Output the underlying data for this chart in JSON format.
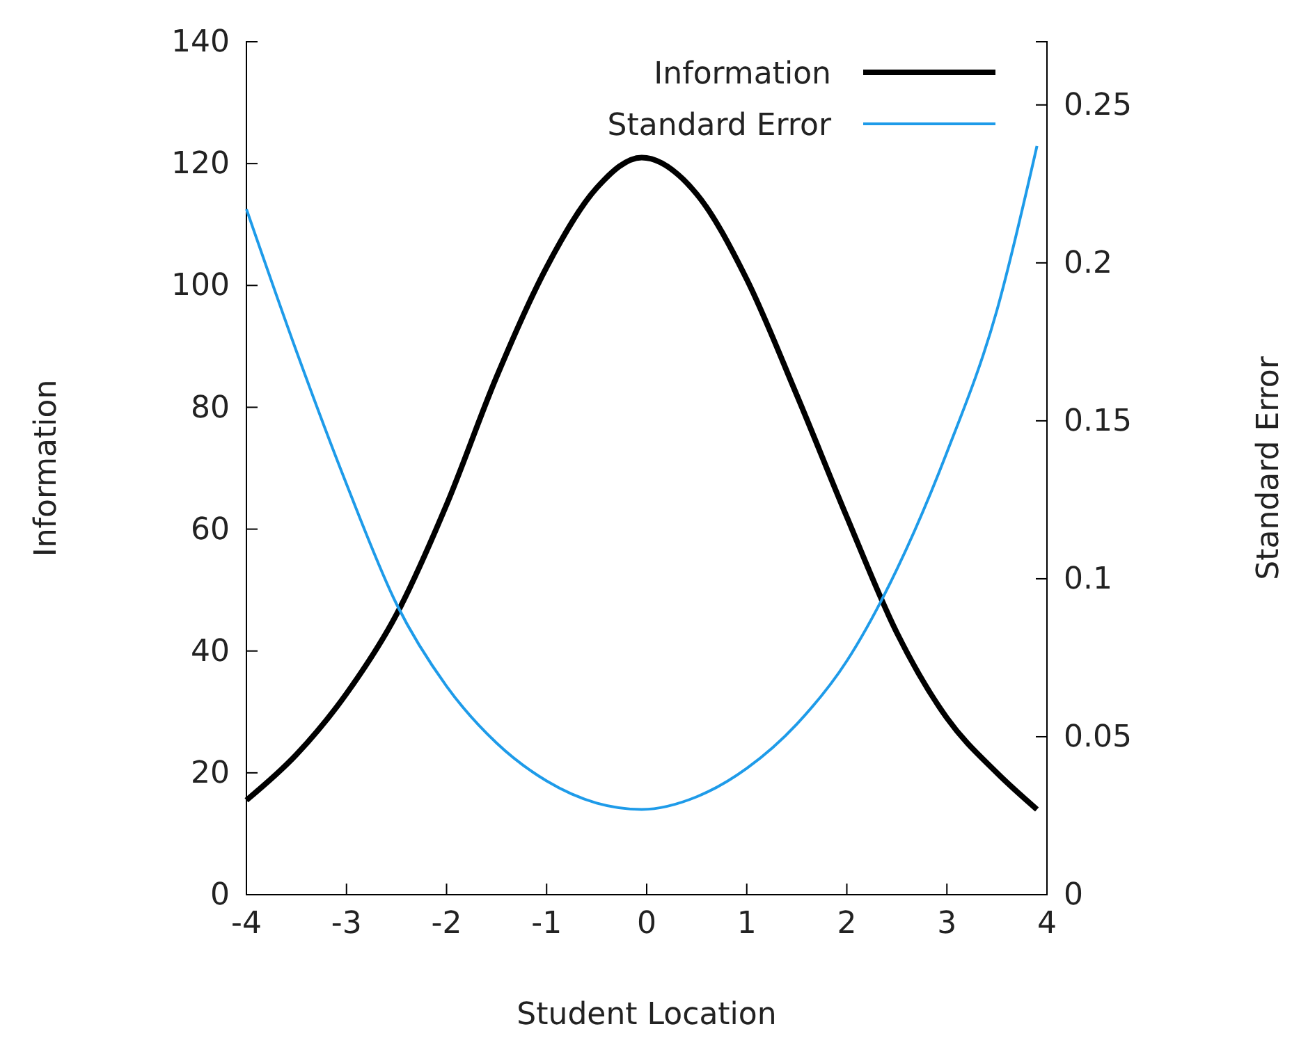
{
  "chart_data": {
    "type": "line",
    "xlabel": "Student Location",
    "ylabel": "Information",
    "y2label": "Standard Error",
    "xlim": [
      -4,
      4
    ],
    "xticks": [
      -4,
      -3,
      -2,
      -1,
      0,
      1,
      2,
      3,
      4
    ],
    "ylim": [
      0,
      140
    ],
    "yticks": [
      0,
      20,
      40,
      60,
      80,
      100,
      120,
      140
    ],
    "y2lim": [
      0,
      0.27
    ],
    "y2ticks": [
      0,
      0.05,
      0.1,
      0.15,
      0.2,
      0.25
    ],
    "legend": "top right",
    "grid": false,
    "series": [
      {
        "name": "Information",
        "color": "#000000",
        "x": [
          -4,
          -3.5,
          -3,
          -2.5,
          -2,
          -1.5,
          -1,
          -0.5,
          -0.05,
          0.5,
          1,
          1.5,
          2,
          2.5,
          3,
          3.5,
          3.9
        ],
        "values": [
          15.5,
          23,
          33,
          46,
          64,
          85,
          103,
          116,
          121,
          115,
          101,
          82,
          62,
          43,
          29,
          20,
          14
        ]
      },
      {
        "name": "Standard Error",
        "color": "#1e9be9",
        "axis": "y2",
        "x": [
          -4,
          -3.5,
          -3,
          -2.5,
          -2,
          -1.5,
          -1,
          -0.5,
          -0.05,
          0.5,
          1,
          1.5,
          2,
          2.5,
          3,
          3.5,
          3.9
        ],
        "values": [
          0.217,
          0.172,
          0.13,
          0.092,
          0.066,
          0.048,
          0.036,
          0.029,
          0.027,
          0.031,
          0.04,
          0.054,
          0.074,
          0.103,
          0.14,
          0.185,
          0.237
        ]
      }
    ]
  }
}
